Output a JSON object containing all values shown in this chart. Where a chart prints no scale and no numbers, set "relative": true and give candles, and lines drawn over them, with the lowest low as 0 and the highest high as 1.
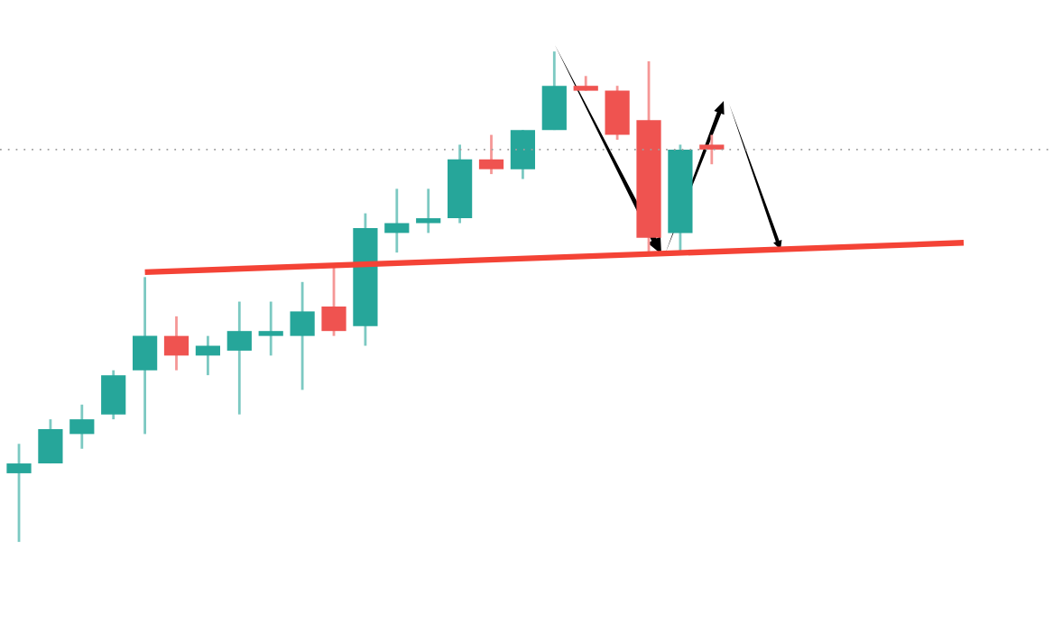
{
  "chart_data": {
    "type": "candlestick",
    "relative": true,
    "categories": [
      null,
      null,
      null,
      null,
      null,
      null,
      null,
      null,
      null,
      null,
      null,
      null,
      null,
      null,
      null,
      null,
      null,
      null,
      null,
      null,
      null,
      null,
      null,
      null,
      null,
      null,
      null,
      null,
      null,
      null,
      null
    ],
    "ohlc": [
      [
        0.14,
        0.2,
        0,
        0.16
      ],
      [
        0.16,
        0.25,
        0.16,
        0.23
      ],
      [
        0.22,
        0.28,
        0.19,
        0.25
      ],
      [
        0.26,
        0.35,
        0.25,
        0.34
      ],
      [
        0.35,
        0.54,
        0.22,
        0.42
      ],
      [
        0.42,
        0.46,
        0.35,
        0.38
      ],
      [
        0.38,
        0.42,
        0.34,
        0.4
      ],
      [
        0.39,
        0.49,
        0.26,
        0.43
      ],
      [
        0.42,
        0.49,
        0.38,
        0.43
      ],
      [
        0.42,
        0.53,
        0.31,
        0.47
      ],
      [
        0.48,
        0.56,
        0.42,
        0.43
      ],
      [
        0.44,
        0.67,
        0.4,
        0.64
      ],
      [
        0.63,
        0.72,
        0.59,
        0.65
      ],
      [
        0.65,
        0.72,
        0.63,
        0.66
      ],
      [
        0.66,
        0.81,
        0.65,
        0.78
      ],
      [
        0.78,
        0.83,
        0.75,
        0.76
      ],
      [
        0.76,
        0.84,
        0.74,
        0.84
      ],
      [
        0.84,
        1,
        0.84,
        0.93
      ],
      [
        0.93,
        0.95,
        0.92,
        0.92
      ],
      [
        0.92,
        0.93,
        0.82,
        0.83
      ],
      [
        0.86,
        0.98,
        0.59,
        0.62
      ],
      [
        0.63,
        0.81,
        0.59,
        0.8
      ],
      [
        0.81,
        0.83,
        0.77,
        0.8
      ],
      null,
      null,
      null,
      null,
      null,
      null,
      null,
      null
    ],
    "colors": [
      "#26a69a",
      "#26a69a",
      "#26a69a",
      "#26a69a",
      "#26a69a",
      "#ef5350",
      "#26a69a",
      "#26a69a",
      "#26a69a",
      "#26a69a",
      "#ef5350",
      "#26a69a",
      "#26a69a",
      "#26a69a",
      "#26a69a",
      "#ef5350",
      "#26a69a",
      "#26a69a",
      "#ef5350",
      "#ef5350",
      "#ef5350",
      "#26a69a",
      "#ef5350",
      null,
      null,
      null,
      null,
      null,
      null,
      null,
      null
    ],
    "series": [
      {
        "type": "line",
        "values": [
          null,
          null,
          null,
          null,
          0.55,
          null,
          null,
          null,
          null,
          null,
          null,
          null,
          null,
          null,
          null,
          null,
          null,
          null,
          null,
          null,
          null,
          null,
          null,
          null,
          null,
          null,
          null,
          null,
          null,
          null,
          0.61
        ],
        "color": "#f44336"
      }
    ],
    "ref_lines": [
      {
        "axis": "y",
        "value": 0.8,
        "color": "#9e9e9e",
        "line_style": "dotted"
      }
    ]
  }
}
